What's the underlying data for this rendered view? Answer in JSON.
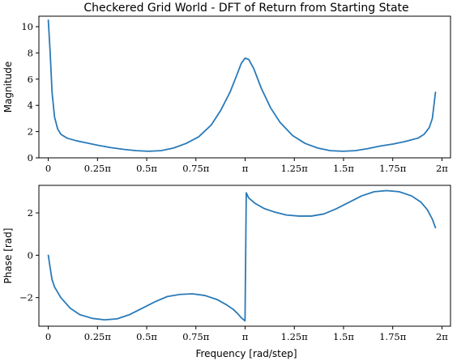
{
  "figure": {
    "title": "Checkered Grid World - DFT of Return from Starting State",
    "xlabel": "Frequency [rad/step]"
  },
  "colors": {
    "series": "#2a7ab8",
    "axes": "#000000"
  },
  "chart_data": [
    {
      "type": "line",
      "ylabel": "Magnitude",
      "xlim": [
        -0.15,
        6.42
      ],
      "ylim": [
        0,
        10.8
      ],
      "grid": false,
      "x_tick_labels": [
        "0",
        "0.25π",
        "0.5π",
        "0.75π",
        "π",
        "1.25π",
        "1.5π",
        "1.75π",
        "2π"
      ],
      "x_ticks": [
        0,
        0.7854,
        1.5708,
        2.3562,
        3.1416,
        3.927,
        4.7124,
        5.4978,
        6.2832
      ],
      "y_ticks": [
        0,
        2,
        4,
        6,
        8,
        10
      ],
      "y_tick_labels": [
        "0",
        "2",
        "4",
        "6",
        "8",
        "10"
      ],
      "series": [
        {
          "x": [
            0,
            0.03,
            0.06,
            0.1,
            0.15,
            0.2,
            0.3,
            0.45,
            0.6,
            0.8,
            1.0,
            1.2,
            1.4,
            1.6,
            1.8,
            2.0,
            2.2,
            2.4,
            2.6,
            2.75,
            2.9,
            3.0,
            3.08,
            3.14,
            3.2,
            3.28,
            3.4,
            3.55,
            3.7,
            3.9,
            4.1,
            4.3,
            4.5,
            4.7,
            4.9,
            5.1,
            5.3,
            5.5,
            5.7,
            5.9,
            6.0,
            6.08,
            6.13,
            6.18
          ],
          "y": [
            10.5,
            8.0,
            5.0,
            3.1,
            2.2,
            1.8,
            1.5,
            1.3,
            1.15,
            0.95,
            0.78,
            0.65,
            0.55,
            0.5,
            0.55,
            0.75,
            1.1,
            1.6,
            2.5,
            3.6,
            5.0,
            6.2,
            7.2,
            7.6,
            7.5,
            6.8,
            5.3,
            3.8,
            2.7,
            1.7,
            1.1,
            0.75,
            0.55,
            0.5,
            0.55,
            0.7,
            0.9,
            1.05,
            1.25,
            1.5,
            1.8,
            2.3,
            3.0,
            5.0
          ]
        }
      ]
    },
    {
      "type": "line",
      "ylabel": "Phase [rad]",
      "xlim": [
        -0.15,
        6.42
      ],
      "ylim": [
        -3.35,
        3.3
      ],
      "grid": false,
      "x_tick_labels": [
        "0",
        "0.25π",
        "0.5π",
        "0.75π",
        "π",
        "1.25π",
        "1.5π",
        "1.75π",
        "2π"
      ],
      "x_ticks": [
        0,
        0.7854,
        1.5708,
        2.3562,
        3.1416,
        3.927,
        4.7124,
        5.4978,
        6.2832
      ],
      "y_ticks": [
        -2,
        0,
        2
      ],
      "y_tick_labels": [
        "−2",
        "0",
        "2"
      ],
      "series": [
        {
          "x": [
            0,
            0.03,
            0.06,
            0.1,
            0.2,
            0.35,
            0.5,
            0.7,
            0.9,
            1.1,
            1.3,
            1.5,
            1.7,
            1.9,
            2.1,
            2.3,
            2.5,
            2.7,
            2.85,
            2.95,
            3.02,
            3.08,
            3.12,
            3.14,
            3.16,
            3.2,
            3.3,
            3.45,
            3.6,
            3.8,
            4.0,
            4.2,
            4.4,
            4.6,
            4.8,
            5.0,
            5.2,
            5.4,
            5.6,
            5.8,
            5.95,
            6.05,
            6.13,
            6.18
          ],
          "y": [
            0.0,
            -0.6,
            -1.15,
            -1.5,
            -2.0,
            -2.5,
            -2.8,
            -2.98,
            -3.05,
            -3.0,
            -2.8,
            -2.5,
            -2.2,
            -1.95,
            -1.85,
            -1.82,
            -1.9,
            -2.1,
            -2.35,
            -2.55,
            -2.75,
            -2.95,
            -3.05,
            -3.1,
            2.95,
            2.7,
            2.45,
            2.2,
            2.05,
            1.9,
            1.85,
            1.85,
            1.95,
            2.2,
            2.5,
            2.8,
            3.0,
            3.05,
            3.0,
            2.8,
            2.5,
            2.15,
            1.7,
            1.3
          ]
        }
      ]
    }
  ]
}
